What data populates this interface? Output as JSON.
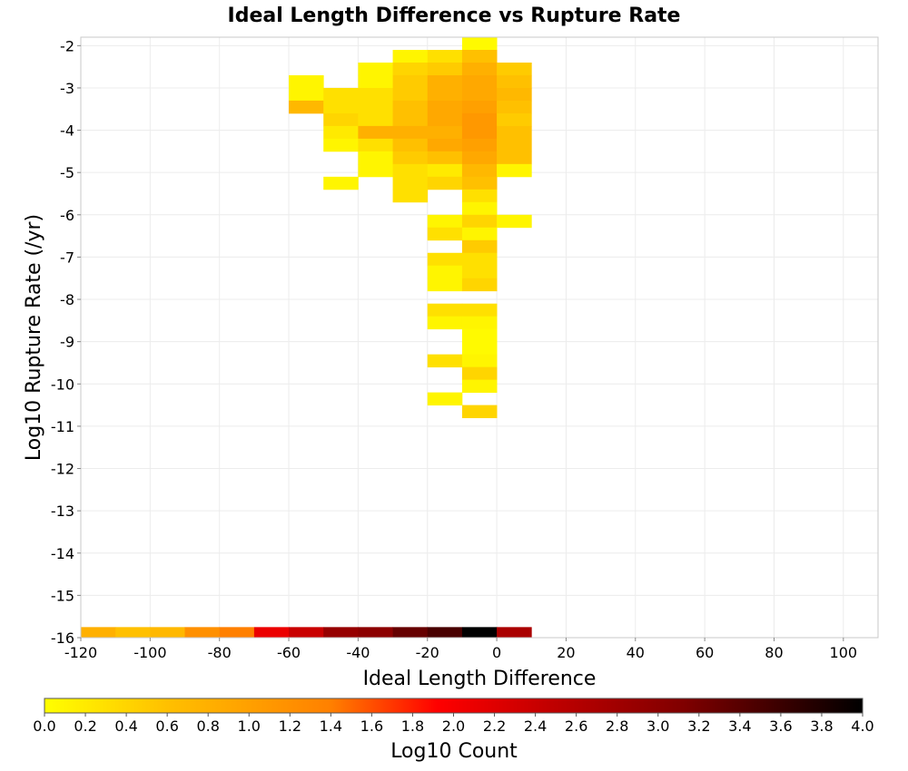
{
  "chart_data": {
    "type": "heatmap",
    "title": "Ideal Length Difference vs Rupture Rate",
    "xlabel": "Ideal Length Difference",
    "ylabel": "Log10 Rupture Rate (/yr)",
    "xlim": [
      -120,
      110
    ],
    "ylim": [
      -16,
      -1.8
    ],
    "x_ticks": [
      "-120",
      "-100",
      "-80",
      "-60",
      "-40",
      "-20",
      "0",
      "20",
      "40",
      "60",
      "80",
      "100"
    ],
    "y_ticks": [
      "-2",
      "-3",
      "-4",
      "-5",
      "-6",
      "-7",
      "-8",
      "-9",
      "-10",
      "-11",
      "-12",
      "-13",
      "-14",
      "-15",
      "-16"
    ],
    "grid": true,
    "cell_size": {
      "x": 10,
      "y": 0.3
    },
    "colorbar": {
      "label": "Log10 Count",
      "range": [
        0.0,
        4.0
      ],
      "ticks": [
        "0.0",
        "0.2",
        "0.4",
        "0.6",
        "0.8",
        "1.0",
        "1.2",
        "1.4",
        "1.6",
        "1.8",
        "2.0",
        "2.2",
        "2.4",
        "2.6",
        "2.8",
        "3.0",
        "3.2",
        "3.4",
        "3.6",
        "3.8",
        "4.0"
      ],
      "colors": [
        "#ffff00",
        "#ffc000",
        "#ff8000",
        "#ff0000",
        "#c00000",
        "#800000",
        "#000000"
      ]
    },
    "cells": [
      {
        "x": -5,
        "y": -1.95,
        "v": 0.05
      },
      {
        "x": -25,
        "y": -2.25,
        "v": 0.1
      },
      {
        "x": -15,
        "y": -2.25,
        "v": 0.3
      },
      {
        "x": -5,
        "y": -2.25,
        "v": 0.6
      },
      {
        "x": -35,
        "y": -2.55,
        "v": 0.1
      },
      {
        "x": -25,
        "y": -2.55,
        "v": 0.4
      },
      {
        "x": -15,
        "y": -2.55,
        "v": 0.5
      },
      {
        "x": -5,
        "y": -2.55,
        "v": 0.8
      },
      {
        "x": 5,
        "y": -2.55,
        "v": 0.5
      },
      {
        "x": -55,
        "y": -2.85,
        "v": 0.1
      },
      {
        "x": -35,
        "y": -2.85,
        "v": 0.1
      },
      {
        "x": -25,
        "y": -2.85,
        "v": 0.5
      },
      {
        "x": -15,
        "y": -2.85,
        "v": 0.8
      },
      {
        "x": -5,
        "y": -2.85,
        "v": 0.9
      },
      {
        "x": 5,
        "y": -2.85,
        "v": 0.6
      },
      {
        "x": -55,
        "y": -3.15,
        "v": 0.1
      },
      {
        "x": -45,
        "y": -3.15,
        "v": 0.3
      },
      {
        "x": -35,
        "y": -3.15,
        "v": 0.3
      },
      {
        "x": -25,
        "y": -3.15,
        "v": 0.5
      },
      {
        "x": -15,
        "y": -3.15,
        "v": 0.8
      },
      {
        "x": -5,
        "y": -3.15,
        "v": 0.9
      },
      {
        "x": 5,
        "y": -3.15,
        "v": 0.7
      },
      {
        "x": -55,
        "y": -3.45,
        "v": 0.7
      },
      {
        "x": -45,
        "y": -3.45,
        "v": 0.3
      },
      {
        "x": -35,
        "y": -3.45,
        "v": 0.3
      },
      {
        "x": -25,
        "y": -3.45,
        "v": 0.6
      },
      {
        "x": -15,
        "y": -3.45,
        "v": 0.9
      },
      {
        "x": -5,
        "y": -3.45,
        "v": 1.0
      },
      {
        "x": 5,
        "y": -3.45,
        "v": 0.6
      },
      {
        "x": -45,
        "y": -3.75,
        "v": 0.4
      },
      {
        "x": -35,
        "y": -3.75,
        "v": 0.3
      },
      {
        "x": -25,
        "y": -3.75,
        "v": 0.6
      },
      {
        "x": -15,
        "y": -3.75,
        "v": 0.9
      },
      {
        "x": -5,
        "y": -3.75,
        "v": 1.1
      },
      {
        "x": 5,
        "y": -3.75,
        "v": 0.5
      },
      {
        "x": -45,
        "y": -4.05,
        "v": 0.2
      },
      {
        "x": -35,
        "y": -4.05,
        "v": 0.8
      },
      {
        "x": -25,
        "y": -4.05,
        "v": 0.8
      },
      {
        "x": -15,
        "y": -4.05,
        "v": 0.8
      },
      {
        "x": -5,
        "y": -4.05,
        "v": 1.1
      },
      {
        "x": 5,
        "y": -4.05,
        "v": 0.6
      },
      {
        "x": -45,
        "y": -4.35,
        "v": 0.1
      },
      {
        "x": -35,
        "y": -4.35,
        "v": 0.3
      },
      {
        "x": -25,
        "y": -4.35,
        "v": 0.6
      },
      {
        "x": -15,
        "y": -4.35,
        "v": 0.9
      },
      {
        "x": -5,
        "y": -4.35,
        "v": 1.0
      },
      {
        "x": 5,
        "y": -4.35,
        "v": 0.6
      },
      {
        "x": -35,
        "y": -4.65,
        "v": 0.1
      },
      {
        "x": -25,
        "y": -4.65,
        "v": 0.5
      },
      {
        "x": -15,
        "y": -4.65,
        "v": 0.6
      },
      {
        "x": -5,
        "y": -4.65,
        "v": 0.9
      },
      {
        "x": 5,
        "y": -4.65,
        "v": 0.6
      },
      {
        "x": -35,
        "y": -4.95,
        "v": 0.1
      },
      {
        "x": -25,
        "y": -4.95,
        "v": 0.3
      },
      {
        "x": -15,
        "y": -4.95,
        "v": 0.2
      },
      {
        "x": -5,
        "y": -4.95,
        "v": 0.7
      },
      {
        "x": 5,
        "y": -4.95,
        "v": 0.1
      },
      {
        "x": -45,
        "y": -5.25,
        "v": 0.1
      },
      {
        "x": -25,
        "y": -5.25,
        "v": 0.3
      },
      {
        "x": -15,
        "y": -5.25,
        "v": 0.4
      },
      {
        "x": -5,
        "y": -5.25,
        "v": 0.6
      },
      {
        "x": -25,
        "y": -5.55,
        "v": 0.3
      },
      {
        "x": -5,
        "y": -5.55,
        "v": 0.3
      },
      {
        "x": -5,
        "y": -5.85,
        "v": 0.1
      },
      {
        "x": -15,
        "y": -6.15,
        "v": 0.1
      },
      {
        "x": -5,
        "y": -6.15,
        "v": 0.4
      },
      {
        "x": 5,
        "y": -6.15,
        "v": 0.1
      },
      {
        "x": -15,
        "y": -6.45,
        "v": 0.3
      },
      {
        "x": -5,
        "y": -6.45,
        "v": 0.1
      },
      {
        "x": -5,
        "y": -6.75,
        "v": 0.5
      },
      {
        "x": -15,
        "y": -7.05,
        "v": 0.3
      },
      {
        "x": -5,
        "y": -7.05,
        "v": 0.3
      },
      {
        "x": -15,
        "y": -7.35,
        "v": 0.1
      },
      {
        "x": -5,
        "y": -7.35,
        "v": 0.3
      },
      {
        "x": -15,
        "y": -7.65,
        "v": 0.1
      },
      {
        "x": -5,
        "y": -7.65,
        "v": 0.4
      },
      {
        "x": -15,
        "y": -8.25,
        "v": 0.3
      },
      {
        "x": -5,
        "y": -8.25,
        "v": 0.3
      },
      {
        "x": -15,
        "y": -8.55,
        "v": 0.1
      },
      {
        "x": -5,
        "y": -8.55,
        "v": 0.1
      },
      {
        "x": -5,
        "y": -8.85,
        "v": 0.05
      },
      {
        "x": -5,
        "y": -9.15,
        "v": 0.05
      },
      {
        "x": -15,
        "y": -9.45,
        "v": 0.3
      },
      {
        "x": -5,
        "y": -9.45,
        "v": 0.1
      },
      {
        "x": -5,
        "y": -9.75,
        "v": 0.4
      },
      {
        "x": -5,
        "y": -10.05,
        "v": 0.1
      },
      {
        "x": -15,
        "y": -10.35,
        "v": 0.1
      },
      {
        "x": -5,
        "y": -10.65,
        "v": 0.4
      },
      {
        "x": -115,
        "y": -15.9,
        "v": 0.8
      },
      {
        "x": -105,
        "y": -15.9,
        "v": 0.6
      },
      {
        "x": -95,
        "y": -15.9,
        "v": 0.7
      },
      {
        "x": -85,
        "y": -15.9,
        "v": 1.2
      },
      {
        "x": -75,
        "y": -15.9,
        "v": 1.4
      },
      {
        "x": -65,
        "y": -15.9,
        "v": 2.1
      },
      {
        "x": -55,
        "y": -15.9,
        "v": 2.4
      },
      {
        "x": -45,
        "y": -15.9,
        "v": 2.9
      },
      {
        "x": -35,
        "y": -15.9,
        "v": 3.0
      },
      {
        "x": -25,
        "y": -15.9,
        "v": 3.3
      },
      {
        "x": -15,
        "y": -15.9,
        "v": 3.5
      },
      {
        "x": -5,
        "y": -15.9,
        "v": 4.0
      },
      {
        "x": 5,
        "y": -15.9,
        "v": 2.7
      }
    ]
  }
}
